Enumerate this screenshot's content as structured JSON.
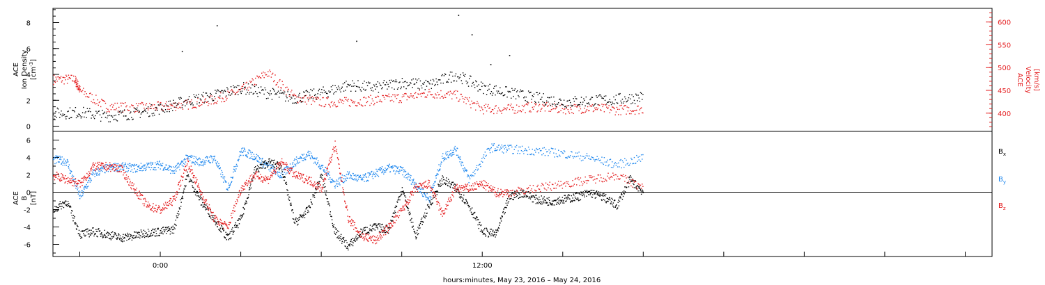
{
  "figure": {
    "xlabel": "hours:minutes, May 23, 2016 – May 24, 2016",
    "x_tick_labels": [
      "0:00",
      "12:00"
    ],
    "colors": {
      "black": "#000000",
      "red": "#e41a1c",
      "blue": "#1c86ee",
      "background": "#ffffff"
    }
  },
  "chart_data": [
    {
      "type": "scatter",
      "title": "",
      "xlabel": "hours:minutes, May 23, 2016 – May 24, 2016",
      "xlim": [
        -4,
        31
      ],
      "x_units": "hours relative to May 23, 2016 0:00",
      "left_axis": {
        "label_line1": "ACE",
        "label_line2": "Ion Density",
        "unit": "[cm",
        "unit_sup": "-3",
        "unit_end": "]",
        "ylim": [
          -0.4,
          9.1
        ],
        "ticks": [
          0,
          2,
          4,
          6,
          8
        ],
        "color": "#000000"
      },
      "right_axis": {
        "label_line1": "ACE",
        "label_line2": "Velocity",
        "unit": "[km/s]",
        "ylim": [
          360,
          630
        ],
        "ticks": [
          400,
          450,
          500,
          550,
          600
        ],
        "color": "#e41a1c"
      },
      "series": [
        {
          "color": "#000000",
          "axis": "left",
          "x": [
            -4,
            -3,
            -2,
            -1,
            0,
            1,
            2,
            3,
            4,
            5,
            6,
            7,
            8,
            9,
            10,
            11,
            12,
            13,
            14,
            15,
            16,
            17,
            18
          ],
          "y": [
            1.0,
            1.1,
            0.8,
            1.0,
            1.4,
            2.0,
            2.4,
            3.0,
            2.6,
            2.2,
            2.6,
            3.2,
            3.0,
            3.4,
            3.2,
            4.0,
            3.0,
            2.6,
            2.2,
            1.9,
            2.0,
            2.1,
            2.3
          ],
          "spikes": [
            [
              0.8,
              5.8
            ],
            [
              2.1,
              7.8
            ],
            [
              7.3,
              6.6
            ],
            [
              11.1,
              8.6
            ],
            [
              11.6,
              7.1
            ],
            [
              13.0,
              5.5
            ],
            [
              12.3,
              4.8
            ]
          ]
        },
        {
          "color": "#e41a1c",
          "axis": "right",
          "x": [
            -4,
            -3.2,
            -3,
            -2,
            -1,
            0,
            1,
            2,
            3,
            4,
            5,
            6,
            7,
            8,
            9,
            10,
            11,
            12,
            13,
            14,
            15,
            16,
            17,
            18
          ],
          "y": [
            475,
            475,
            450,
            415,
            413,
            415,
            420,
            430,
            450,
            490,
            435,
            425,
            425,
            430,
            435,
            445,
            440,
            410,
            410,
            415,
            410,
            412,
            408,
            410
          ]
        }
      ]
    },
    {
      "type": "scatter",
      "title": "",
      "xlim": [
        -4,
        31
      ],
      "ylabel_line1": "ACE",
      "ylabel_line2": "B",
      "ylabel_unit": "[nT]",
      "ylim": [
        -7.4,
        7.0
      ],
      "ticks": [
        -6,
        -4,
        -2,
        0,
        2,
        4,
        6
      ],
      "zero_line": true,
      "legend": [
        {
          "name": "B",
          "sub": "x",
          "color": "#000000"
        },
        {
          "name": "B",
          "sub": "y",
          "color": "#1c86ee"
        },
        {
          "name": "B",
          "sub": "z",
          "color": "#e41a1c"
        }
      ],
      "series": [
        {
          "color": "#000000",
          "x": [
            -4,
            -3.5,
            -3,
            -2.5,
            -2,
            -1.5,
            -1,
            -0.5,
            0,
            0.5,
            1,
            1.5,
            2,
            2.5,
            3,
            3.5,
            4,
            4.5,
            5,
            5.5,
            6,
            6.5,
            7,
            7.5,
            8,
            8.5,
            9,
            9.5,
            10,
            10.5,
            11,
            11.5,
            12,
            12.5,
            13,
            13.5,
            14,
            14.5,
            15,
            15.5,
            16,
            16.5,
            17,
            17.5,
            18
          ],
          "y": [
            -2,
            -1,
            -4.8,
            -4.5,
            -4.8,
            -5.2,
            -5.0,
            -4.6,
            -4.5,
            -4.2,
            2,
            -1,
            -3,
            -5.3,
            -3,
            2.5,
            3.5,
            3,
            -3.5,
            -2,
            2,
            -4.5,
            -6.2,
            -4.5,
            -4.0,
            -4.2,
            0.5,
            -5.0,
            -1.5,
            1.5,
            0.5,
            -1.5,
            -4.5,
            -4.8,
            -0.5,
            0,
            -0.8,
            -1.0,
            -0.8,
            -0.5,
            0,
            -0.5,
            -1.5,
            1.5,
            0
          ]
        },
        {
          "color": "#1c86ee",
          "x": [
            -4,
            -3.5,
            -3,
            -2.5,
            -2,
            -1.5,
            -1,
            -0.5,
            0,
            0.5,
            1,
            1.5,
            2,
            2.5,
            3,
            3.5,
            4,
            4.5,
            5,
            5.5,
            6,
            6.5,
            7,
            7.5,
            8,
            8.5,
            9,
            9.5,
            10,
            10.5,
            11,
            11.5,
            12.3,
            13,
            14,
            15,
            16,
            17,
            18
          ],
          "y": [
            3.8,
            3.6,
            -0.5,
            2.2,
            2.8,
            3.0,
            2.8,
            3.0,
            3.2,
            2.5,
            4.0,
            3.5,
            4.0,
            0.5,
            4.8,
            4.2,
            3.0,
            2.0,
            3.5,
            4.5,
            3.0,
            1.0,
            2.0,
            1.5,
            2.2,
            2.8,
            2.5,
            1.0,
            -0.8,
            4.0,
            5.0,
            1.5,
            5.2,
            5.0,
            4.8,
            4.5,
            4.0,
            3.2,
            4.0
          ]
        },
        {
          "color": "#e41a1c",
          "x": [
            -4,
            -3.5,
            -3,
            -2.5,
            -2,
            -1.5,
            -1,
            -0.5,
            0,
            0.5,
            1,
            1.5,
            2,
            2.5,
            3,
            3.5,
            4,
            4.5,
            5,
            5.5,
            6,
            6.5,
            7,
            7.5,
            8,
            8.5,
            9,
            9.5,
            10,
            10.5,
            11,
            11.5,
            12,
            12.5,
            13,
            14,
            15,
            16,
            17,
            18
          ],
          "y": [
            2.0,
            1.5,
            1.0,
            3.0,
            3.0,
            2.8,
            0.5,
            -1.5,
            -2.0,
            -0.8,
            3.5,
            0,
            -3.0,
            -4.0,
            0.5,
            2.0,
            1.5,
            3.5,
            2.0,
            1.5,
            0.5,
            5.5,
            -3.0,
            -5.0,
            -5.5,
            -4.0,
            -2.0,
            0.5,
            1.0,
            -2.5,
            0.5,
            0.5,
            1.0,
            0,
            0,
            0.5,
            1.0,
            1.5,
            2.0,
            0.5
          ]
        }
      ]
    }
  ]
}
